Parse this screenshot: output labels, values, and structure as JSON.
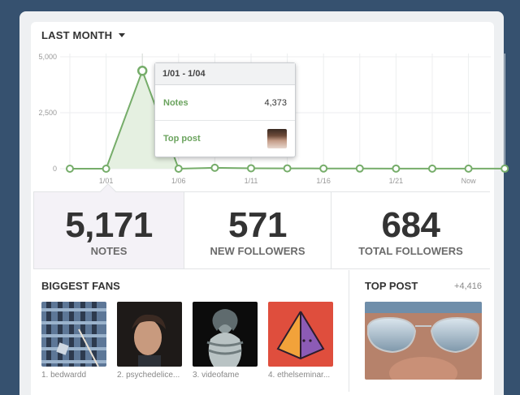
{
  "header": {
    "range_label": "LAST MONTH"
  },
  "chart_data": {
    "type": "line",
    "y_ticks": [
      "5,000",
      "2,500",
      "0"
    ],
    "x_ticks": [
      "1/01",
      "1/06",
      "1/11",
      "1/16",
      "1/21",
      "Now"
    ],
    "ylim": [
      0,
      5000
    ],
    "points": [
      0,
      0,
      4373,
      0,
      40,
      20,
      15,
      10,
      8,
      6,
      5,
      4,
      3
    ],
    "highlight_index": 2,
    "series_color": "#76ad6a",
    "fill_color": "#e5f0e1"
  },
  "tooltip": {
    "range": "1/01 - 1/04",
    "notes_label": "Notes",
    "notes_value": "4,373",
    "toppost_label": "Top post"
  },
  "stats": [
    {
      "value": "5,171",
      "label": "NOTES"
    },
    {
      "value": "571",
      "label": "NEW FOLLOWERS"
    },
    {
      "value": "684",
      "label": "TOTAL FOLLOWERS"
    }
  ],
  "fans": {
    "title": "BIGGEST FANS",
    "items": [
      {
        "name": "1. bedwardd"
      },
      {
        "name": "2. psychedelice..."
      },
      {
        "name": "3. videofame"
      },
      {
        "name": "4. ethelseminar..."
      }
    ]
  },
  "top_post": {
    "title": "TOP POST",
    "count": "+4,416"
  }
}
